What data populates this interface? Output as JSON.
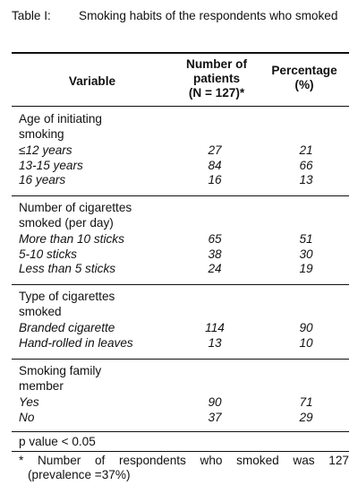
{
  "caption": {
    "number": "Table I:",
    "title": "Smoking habits of the respondents who smoked"
  },
  "columns": {
    "variable": "Variable",
    "patients_line1": "Number of",
    "patients_line2": "patients",
    "patients_line3": "(N = 127)*",
    "percentage_line1": "Percentage",
    "percentage_line2": "(%)"
  },
  "sections": [
    {
      "title_line1": "Age of initiating",
      "title_line2": "smoking",
      "rows": [
        {
          "label": "≤12 years",
          "n": "27",
          "pct": "21"
        },
        {
          "label": "13-15 years",
          "n": "84",
          "pct": "66"
        },
        {
          "label": "16 years",
          "n": "16",
          "pct": "13"
        }
      ]
    },
    {
      "title_line1": "Number of cigarettes",
      "title_line2": "smoked (per day)",
      "rows": [
        {
          "label": "More than 10 sticks",
          "n": "65",
          "pct": "51"
        },
        {
          "label": "5-10 sticks",
          "n": "38",
          "pct": "30"
        },
        {
          "label": "Less than 5 sticks",
          "n": "24",
          "pct": "19"
        }
      ]
    },
    {
      "title_line1": "Type of cigarettes",
      "title_line2": "smoked",
      "rows": [
        {
          "label": "Branded cigarette",
          "n": "114",
          "pct": "90"
        },
        {
          "label": "Hand-rolled in leaves",
          "n": "13",
          "pct": "10"
        }
      ]
    },
    {
      "title_line1": "Smoking family",
      "title_line2": "member",
      "rows": [
        {
          "label": "Yes",
          "n": "90",
          "pct": "71"
        },
        {
          "label": "No",
          "n": "37",
          "pct": "29"
        }
      ]
    }
  ],
  "p_value": "p value < 0.05",
  "footnote": {
    "words": [
      "*",
      "Number",
      "of",
      "respondents",
      "who",
      "smoked",
      "was",
      "127"
    ],
    "line2": "(prevalence =37%)"
  }
}
